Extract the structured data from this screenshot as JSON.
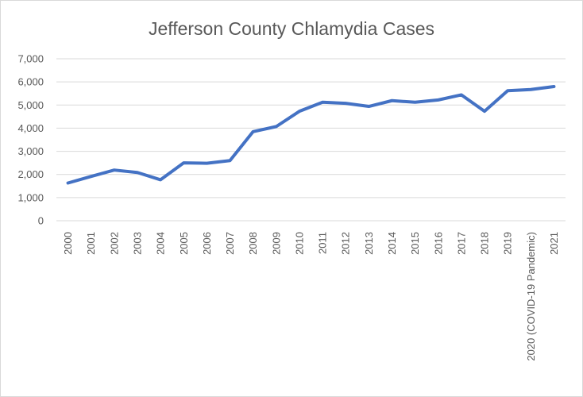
{
  "chart_data": {
    "type": "line",
    "title": "Jefferson County Chlamydia Cases",
    "xlabel": "",
    "ylabel": "",
    "categories": [
      "2000",
      "2001",
      "2002",
      "2003",
      "2004",
      "2005",
      "2006",
      "2007",
      "2008",
      "2009",
      "2010",
      "2011",
      "2012",
      "2013",
      "2014",
      "2015",
      "2016",
      "2017",
      "2018",
      "2019",
      "2020 (COVID-19 Pandemic)",
      "2021"
    ],
    "series": [
      {
        "values": [
          1630,
          1915,
          2190,
          2085,
          1770,
          2500,
          2485,
          2600,
          3850,
          4070,
          4730,
          5120,
          5075,
          4940,
          5190,
          5120,
          5220,
          5440,
          4730,
          5620,
          5670,
          5800
        ]
      }
    ],
    "ylim": [
      0,
      7000
    ],
    "yticks": [
      0,
      1000,
      2000,
      3000,
      4000,
      5000,
      6000,
      7000
    ],
    "ytick_labels": [
      "0",
      "1,000",
      "2,000",
      "3,000",
      "4,000",
      "5,000",
      "6,000",
      "7,000"
    ],
    "grid": "horizontal",
    "legend": "none",
    "colors": {
      "line": "#4472c4",
      "grid": "#d9d9d9",
      "text": "#595959"
    }
  }
}
